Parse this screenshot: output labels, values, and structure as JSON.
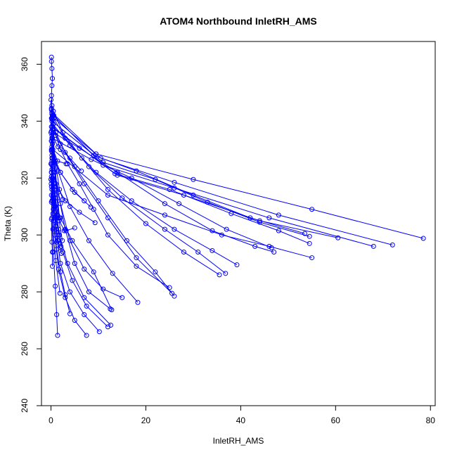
{
  "chart_data": {
    "type": "line",
    "title": "ATOM4 Northbound InletRH_AMS",
    "xlabel": "InletRH_AMS",
    "ylabel": "Theta (K)",
    "xlim": [
      -2,
      81
    ],
    "ylim": [
      240,
      368
    ],
    "x_ticks": [
      0,
      20,
      40,
      60,
      80
    ],
    "y_ticks": [
      240,
      260,
      280,
      300,
      320,
      340,
      360
    ],
    "x_tick_labels": [
      "0",
      "20",
      "40",
      "60",
      "80"
    ],
    "y_tick_labels": [
      "240",
      "260",
      "280",
      "300",
      "320",
      "340",
      "360"
    ],
    "grid": false,
    "legend": "none",
    "color": "#0000ff",
    "series": [
      {
        "x": [
          0.1,
          0.1,
          0.2,
          0.3,
          0.2,
          0.1,
          0.2,
          0.3,
          0.5,
          1.0,
          2.0,
          3.5,
          6.0,
          9.0,
          12.0,
          18.0,
          25.0
        ],
        "y": [
          362.5,
          361.0,
          358.5,
          355.0,
          352.5,
          349.0,
          345.5,
          342.0,
          339.0,
          335.0,
          330.0,
          325.0,
          318.0,
          309.0,
          300.0,
          289.0,
          281.5
        ]
      },
      {
        "x": [
          0.3,
          1.0,
          3.0,
          7.0,
          12.0,
          18.0,
          25.5
        ],
        "y": [
          340.5,
          336.0,
          329.0,
          318.0,
          306.0,
          292.0,
          279.5
        ]
      },
      {
        "x": [
          0.4,
          2.0,
          5.0,
          10.0,
          16.0,
          22.0,
          26.0
        ],
        "y": [
          337.0,
          332.0,
          324.0,
          312.0,
          298.0,
          287.0,
          278.5
        ]
      },
      {
        "x": [
          0.5,
          2.5,
          6.5,
          12.0,
          20.0,
          28.0,
          35.5
        ],
        "y": [
          343.5,
          336.0,
          327.0,
          316.0,
          304.0,
          294.0,
          286.0
        ]
      },
      {
        "x": [
          0.6,
          3.0,
          8.0,
          15.0,
          24.0,
          31.0,
          36.8
        ],
        "y": [
          341.0,
          334.0,
          324.0,
          313.0,
          302.0,
          294.0,
          286.5
        ]
      },
      {
        "x": [
          0.4,
          4.0,
          9.5,
          17.0,
          26.0,
          34.0,
          39.2
        ],
        "y": [
          339.0,
          331.5,
          322.0,
          312.0,
          302.0,
          294.5,
          289.5
        ]
      },
      {
        "x": [
          0.5,
          6.0,
          14.0,
          24.0,
          34.0,
          43.0,
          47.0
        ],
        "y": [
          336.0,
          330.5,
          322.0,
          311.0,
          301.5,
          296.0,
          294.0
        ]
      },
      {
        "x": [
          0.3,
          8.5,
          17.0,
          27.0,
          37.0,
          46.5
        ],
        "y": [
          334.0,
          326.5,
          320.0,
          311.0,
          302.0,
          295.5
        ]
      },
      {
        "x": [
          0.2,
          9.0,
          18.0,
          30.0,
          42.0,
          53.5
        ],
        "y": [
          342.5,
          328.0,
          322.5,
          314.0,
          306.0,
          300.5
        ]
      },
      {
        "x": [
          0.2,
          11.0,
          22.0,
          33.0,
          44.0,
          54.5
        ],
        "y": [
          340.0,
          325.5,
          319.5,
          311.5,
          304.5,
          299.5
        ]
      },
      {
        "x": [
          0.3,
          13.5,
          25.0,
          38.0,
          48.0,
          54.5
        ],
        "y": [
          338.0,
          321.5,
          316.0,
          307.5,
          301.5,
          297.0
        ]
      },
      {
        "x": [
          0.4,
          12.0,
          24.0,
          36.0,
          46.0,
          55.0
        ],
        "y": [
          330.0,
          314.0,
          307.0,
          300.0,
          296.0,
          292.0
        ]
      },
      {
        "x": [
          0.5,
          14.0,
          28.0,
          44.0,
          60.5
        ],
        "y": [
          337.5,
          321.0,
          314.0,
          305.0,
          299.0
        ]
      },
      {
        "x": [
          0.6,
          11.0,
          26.0,
          46.0,
          68.0
        ],
        "y": [
          342.0,
          324.5,
          316.5,
          306.0,
          296.0
        ]
      },
      {
        "x": [
          0.3,
          10.5,
          26.0,
          48.0,
          72.0
        ],
        "y": [
          341.5,
          327.0,
          318.5,
          307.0,
          296.5
        ]
      },
      {
        "x": [
          0.2,
          9.5,
          30.0,
          55.0,
          78.5
        ],
        "y": [
          343.0,
          328.5,
          319.5,
          309.0,
          298.8
        ]
      },
      {
        "x": [
          0.1,
          0.5,
          1.5,
          3.0,
          5.0,
          8.0,
          12.5
        ],
        "y": [
          333.0,
          326.0,
          315.0,
          302.0,
          290.0,
          280.0,
          274.0
        ]
      },
      {
        "x": [
          0.2,
          0.8,
          2.0,
          4.0,
          7.0,
          11.0,
          15.0
        ],
        "y": [
          330.0,
          322.0,
          311.0,
          298.0,
          288.0,
          281.0,
          278.0
        ]
      },
      {
        "x": [
          0.3,
          1.5,
          4.0,
          8.0,
          13.0,
          18.3
        ],
        "y": [
          332.0,
          322.5,
          310.0,
          298.0,
          286.5,
          276.3
        ]
      },
      {
        "x": [
          0.2,
          0.6,
          1.2,
          2.5,
          4.5,
          7.5,
          12.0
        ],
        "y": [
          328.0,
          318.0,
          306.0,
          294.0,
          284.0,
          275.0,
          267.7
        ]
      },
      {
        "x": [
          0.1,
          0.4,
          1.0,
          2.0,
          4.0,
          7.0,
          10.2
        ],
        "y": [
          325.0,
          314.0,
          302.0,
          290.0,
          280.0,
          272.0,
          266.0
        ]
      },
      {
        "x": [
          0.1,
          0.3,
          0.8,
          1.6,
          3.0,
          5.0,
          7.5
        ],
        "y": [
          322.0,
          312.0,
          300.0,
          288.0,
          278.0,
          270.0,
          264.7
        ]
      },
      {
        "x": [
          0.05,
          0.2,
          0.5,
          0.9,
          1.2,
          1.4
        ],
        "y": [
          318.0,
          306.0,
          294.0,
          282.0,
          272.0,
          264.7
        ]
      },
      {
        "x": [
          0.2,
          0.6,
          1.2,
          2.0,
          3.0,
          4.0
        ],
        "y": [
          316.0,
          305.0,
          295.0,
          287.0,
          279.0,
          272.3
        ]
      },
      {
        "x": [
          0.1,
          0.4,
          1.0,
          1.9
        ],
        "y": [
          311.5,
          302.0,
          291.0,
          279.5
        ]
      },
      {
        "x": [
          0.1,
          0.2,
          0.3,
          0.3
        ],
        "y": [
          305.5,
          297.5,
          294.0,
          289.0
        ]
      },
      {
        "x": [
          0.4,
          1.5,
          2.8,
          3.2,
          5.0
        ],
        "y": [
          313.0,
          306.0,
          301.5,
          301.5,
          302.5
        ]
      },
      {
        "x": [
          0.6,
          2.0,
          4.5,
          9.0,
          12.8
        ],
        "y": [
          312.0,
          306.0,
          298.0,
          287.0,
          273.7
        ]
      },
      {
        "x": [
          0.5,
          1.8,
          3.5,
          7.0,
          12.6
        ],
        "y": [
          309.0,
          300.0,
          290.0,
          278.0,
          268.3
        ]
      },
      {
        "x": [
          0.2,
          1.0,
          3.0,
          6.0,
          9.3
        ],
        "y": [
          323.0,
          318.0,
          312.0,
          308.0,
          304.3
        ]
      },
      {
        "x": [
          0.3,
          2.0,
          4.5,
          7.0
        ],
        "y": [
          327.0,
          322.0,
          316.0,
          312.0
        ]
      },
      {
        "x": [
          0.2,
          1.5,
          4.0,
          6.4
        ],
        "y": [
          335.0,
          331.0,
          327.0,
          322.5
        ]
      },
      {
        "x": [
          0.3,
          2.0,
          5.0,
          8.4
        ],
        "y": [
          329.0,
          322.0,
          315.0,
          309.8
        ]
      },
      {
        "x": [
          0.2,
          1.4,
          3.2
        ],
        "y": [
          331.0,
          326.0,
          325.0
        ]
      },
      {
        "x": [
          0.2,
          0.9,
          1.8,
          2.5
        ],
        "y": [
          334.0,
          326.0,
          316.0,
          312.5
        ]
      },
      {
        "x": [
          0.1,
          0.8,
          1.7,
          2.4
        ],
        "y": [
          336.5,
          322.0,
          305.0,
          298.0
        ]
      },
      {
        "x": [
          0.2,
          0.9,
          1.6,
          2.1
        ],
        "y": [
          326.0,
          310.0,
          300.0,
          296.0
        ]
      },
      {
        "x": [
          0.3,
          0.9,
          1.4,
          1.9
        ],
        "y": [
          320.0,
          306.0,
          298.0,
          295.5
        ]
      },
      {
        "x": [
          0.2,
          0.6,
          1.0,
          1.5,
          2.2
        ],
        "y": [
          319.0,
          310.0,
          303.0,
          298.0,
          293.5
        ]
      },
      {
        "x": [
          0.1,
          0.4,
          0.8,
          1.2
        ],
        "y": [
          320.5,
          307.5,
          300.0,
          297.5
        ]
      },
      {
        "x": [
          0.2,
          0.7,
          1.2,
          1.6
        ],
        "y": [
          324.5,
          316.0,
          307.0,
          302.0
        ]
      },
      {
        "x": [
          0.1,
          0.5,
          1.0,
          1.4
        ],
        "y": [
          329.5,
          321.0,
          313.0,
          307.0
        ]
      },
      {
        "x": [
          0.1,
          0.4,
          0.8,
          1.0
        ],
        "y": [
          344.5,
          333.0,
          322.0,
          317.0
        ]
      },
      {
        "x": [
          0.2,
          0.8,
          1.4,
          1.8
        ],
        "y": [
          341.0,
          325.5,
          313.0,
          306.0
        ]
      },
      {
        "x": [
          0.0,
          0.1,
          0.1,
          0.1,
          0.0,
          0.1,
          0.1,
          0.2
        ],
        "y": [
          347.5,
          344.0,
          341.0,
          338.0,
          336.0,
          333.0,
          330.0,
          327.0
        ]
      },
      {
        "x": [
          0.0,
          0.1,
          0.0,
          0.1,
          0.1,
          0.2
        ],
        "y": [
          325.0,
          322.0,
          319.5,
          317.0,
          314.0,
          312.0
        ]
      }
    ]
  }
}
